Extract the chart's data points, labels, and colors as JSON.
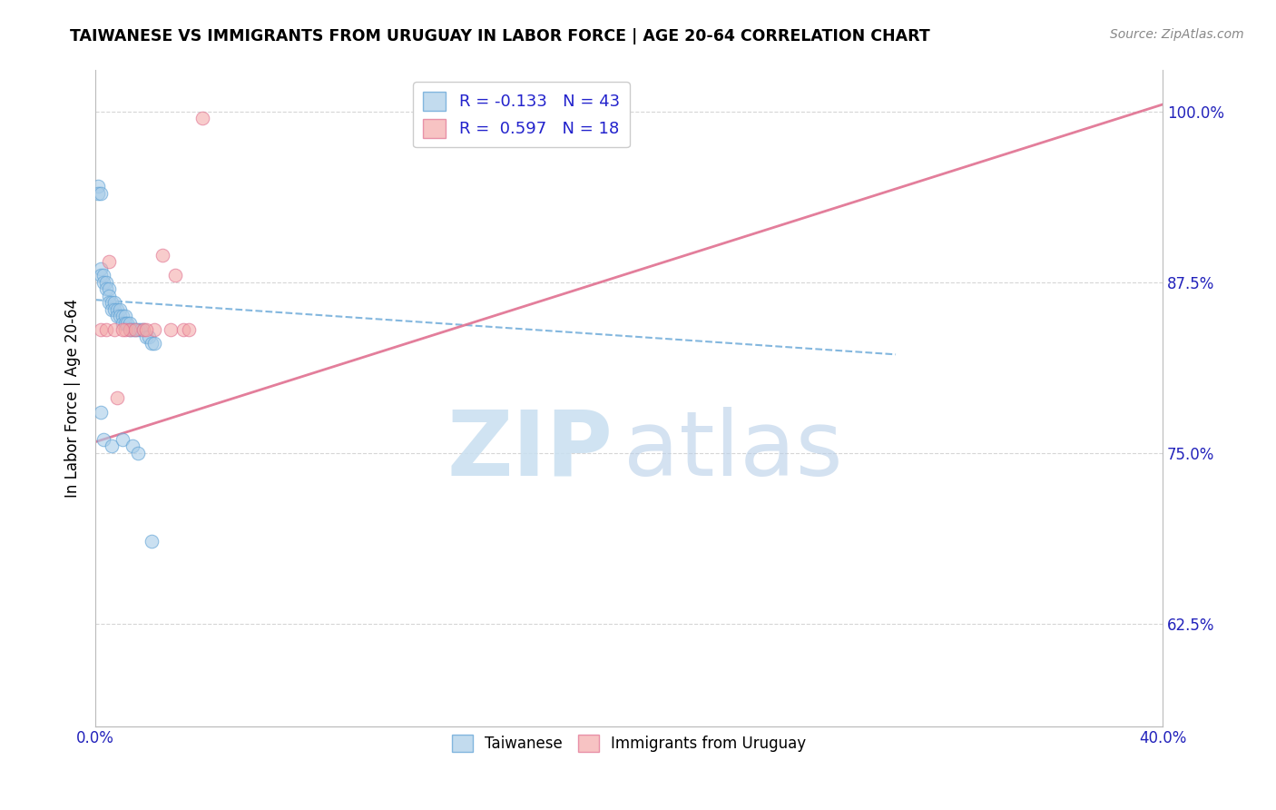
{
  "title": "TAIWANESE VS IMMIGRANTS FROM URUGUAY IN LABOR FORCE | AGE 20-64 CORRELATION CHART",
  "source": "Source: ZipAtlas.com",
  "ylabel": "In Labor Force | Age 20-64",
  "xlim": [
    0.0,
    0.4
  ],
  "ylim": [
    0.55,
    1.03
  ],
  "x_ticks": [
    0.0,
    0.05,
    0.1,
    0.15,
    0.2,
    0.25,
    0.3,
    0.35,
    0.4
  ],
  "x_tick_labels": [
    "0.0%",
    "",
    "",
    "",
    "",
    "",
    "",
    "",
    "40.0%"
  ],
  "y_ticks": [
    0.625,
    0.75,
    0.875,
    1.0
  ],
  "y_tick_labels": [
    "62.5%",
    "75.0%",
    "87.5%",
    "100.0%"
  ],
  "blue_R": -0.133,
  "blue_N": 43,
  "pink_R": 0.597,
  "pink_N": 18,
  "blue_color": "#a8cce8",
  "pink_color": "#f4aaaa",
  "blue_edge_color": "#5a9fd4",
  "pink_edge_color": "#e07090",
  "blue_line_color": "#5a9fd4",
  "pink_line_color": "#e07090",
  "blue_scatter_x": [
    0.001,
    0.001,
    0.002,
    0.002,
    0.002,
    0.003,
    0.003,
    0.004,
    0.004,
    0.005,
    0.005,
    0.005,
    0.006,
    0.006,
    0.007,
    0.007,
    0.008,
    0.008,
    0.009,
    0.009,
    0.01,
    0.01,
    0.011,
    0.011,
    0.012,
    0.013,
    0.013,
    0.014,
    0.015,
    0.016,
    0.017,
    0.018,
    0.019,
    0.02,
    0.021,
    0.022,
    0.002,
    0.003,
    0.006,
    0.01,
    0.014,
    0.016,
    0.021
  ],
  "blue_scatter_y": [
    0.945,
    0.94,
    0.94,
    0.885,
    0.88,
    0.88,
    0.875,
    0.875,
    0.87,
    0.87,
    0.865,
    0.86,
    0.86,
    0.855,
    0.86,
    0.855,
    0.855,
    0.85,
    0.855,
    0.85,
    0.85,
    0.845,
    0.85,
    0.845,
    0.845,
    0.845,
    0.84,
    0.84,
    0.84,
    0.84,
    0.84,
    0.84,
    0.835,
    0.835,
    0.83,
    0.83,
    0.78,
    0.76,
    0.755,
    0.76,
    0.755,
    0.75,
    0.685
  ],
  "pink_scatter_x": [
    0.002,
    0.004,
    0.007,
    0.008,
    0.011,
    0.013,
    0.015,
    0.018,
    0.022,
    0.025,
    0.028,
    0.033,
    0.035,
    0.04,
    0.005,
    0.01,
    0.019,
    0.03
  ],
  "pink_scatter_y": [
    0.84,
    0.84,
    0.84,
    0.79,
    0.84,
    0.84,
    0.84,
    0.84,
    0.84,
    0.895,
    0.84,
    0.84,
    0.84,
    0.995,
    0.89,
    0.84,
    0.84,
    0.88
  ],
  "blue_trend_x0": 0.0,
  "blue_trend_x1": 0.3,
  "blue_trend_y0": 0.862,
  "blue_trend_y1": 0.822,
  "pink_trend_x0": 0.0,
  "pink_trend_x1": 0.4,
  "pink_trend_y0": 0.758,
  "pink_trend_y1": 1.005,
  "grid_color": "#cccccc",
  "background_color": "#ffffff",
  "watermark_zip_color": "#c8dff0",
  "watermark_atlas_color": "#b8cfe8"
}
